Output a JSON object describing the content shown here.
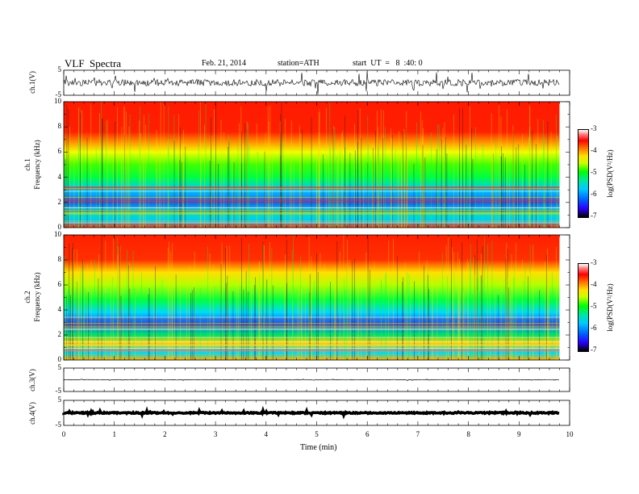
{
  "header": {
    "title": "VLF  Spectra",
    "date": "Feb. 21, 2014",
    "station": "station=ATH",
    "start": "start  UT  =   8  :40: 0"
  },
  "panels": {
    "ch1_wave": {
      "ylabel": "ch.1(V)",
      "ticks": [
        "5",
        "-5"
      ]
    },
    "ch1_spec": {
      "ylabel_top": "ch.1",
      "ylabel": "Frequency  (kHz)",
      "ticks": [
        "10",
        "8",
        "6",
        "4",
        "2",
        "0"
      ]
    },
    "ch2_spec": {
      "ylabel_top": "ch.2",
      "ylabel": "Frequency  (kHz)",
      "ticks": [
        "10",
        "8",
        "6",
        "4",
        "2",
        "0"
      ]
    },
    "ch3_wave": {
      "ylabel": "ch.3(V)",
      "ticks": [
        "5",
        "-5"
      ]
    },
    "ch4_wave": {
      "ylabel": "ch.4(V)",
      "ticks": [
        "5",
        "-5"
      ]
    }
  },
  "colorbar": {
    "label": "log(PSD(V²/Hz)",
    "ticks": [
      "-3",
      "-4",
      "-5",
      "-6",
      "-7"
    ]
  },
  "xaxis": {
    "label": "Time  (min)",
    "ticks": [
      "0",
      "1",
      "2",
      "3",
      "4",
      "5",
      "6",
      "7",
      "8",
      "9",
      "10"
    ]
  },
  "chart_data": {
    "type": "heatmap",
    "title": "VLF  Spectra",
    "xlabel": "Time  (min)",
    "xlim": [
      0,
      10
    ],
    "data_end_min": 9.8,
    "spectrograms": [
      {
        "name": "ch.1",
        "ylabel": "Frequency  (kHz)",
        "ylim": [
          0,
          10
        ]
      },
      {
        "name": "ch.2",
        "ylabel": "Frequency  (kHz)",
        "ylim": [
          0,
          10
        ]
      }
    ],
    "waveforms": [
      {
        "name": "ch.1(V)",
        "ylim": [
          -5,
          5
        ]
      },
      {
        "name": "ch.3(V)",
        "ylim": [
          -5,
          5
        ]
      },
      {
        "name": "ch.4(V)",
        "ylim": [
          -5,
          5
        ]
      }
    ],
    "colorscale": {
      "label": "log(PSD(V²/Hz)",
      "range": [
        -7,
        -3
      ]
    }
  }
}
